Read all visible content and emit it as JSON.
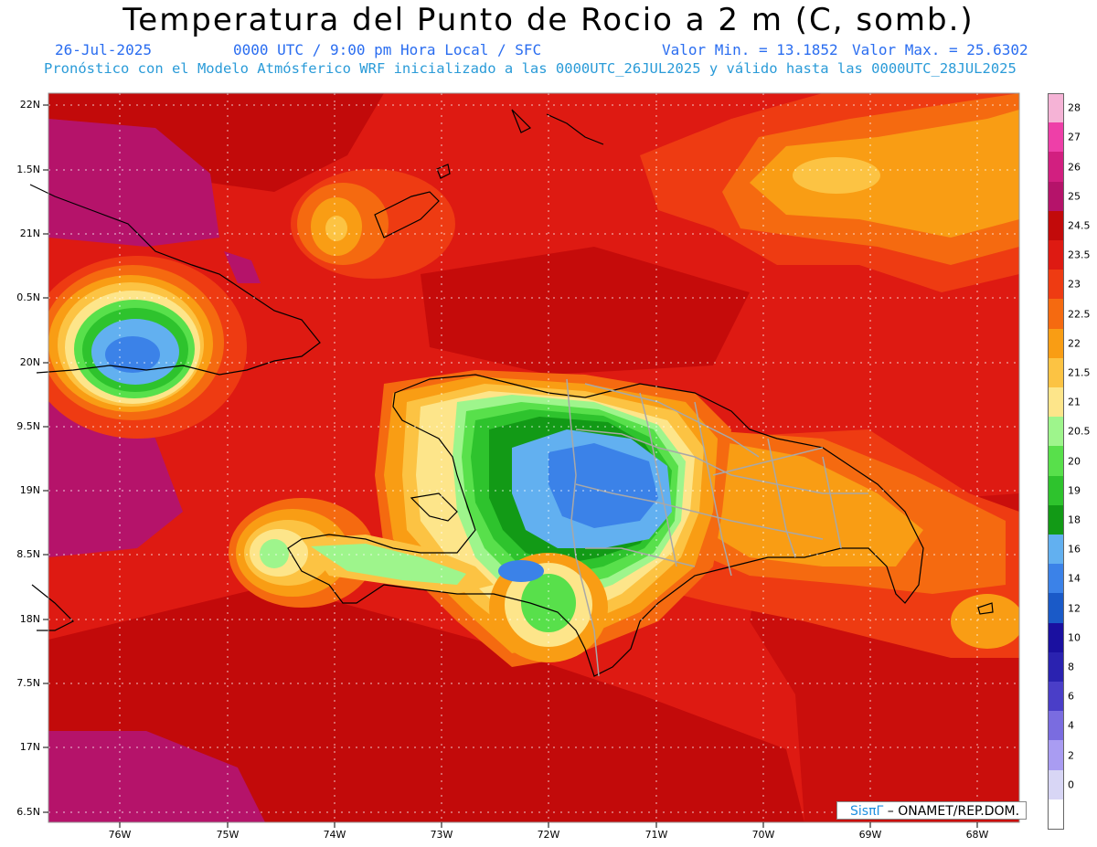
{
  "header": {
    "title": "Temperatura del Punto de Rocio a 2 m (C, somb.)",
    "date": "26-Jul-2025",
    "time_info": "0000 UTC / 9:00 pm Hora Local / SFC",
    "min_label": "Valor Min. = 13.1852",
    "max_label": "Valor Max. = 25.6302",
    "model_info": "Pronóstico con el Modelo Atmósferico WRF inicializado a las 0000UTC_26JUL2025 y válido hasta las  0000UTC_28JUL2025"
  },
  "map": {
    "lat_labels": [
      "22N",
      "1.5N",
      "21N",
      "0.5N",
      "20N",
      "9.5N",
      "19N",
      "8.5N",
      "18N",
      "7.5N",
      "17N",
      "6.5N"
    ],
    "lon_labels": [
      "76W",
      "75W",
      "74W",
      "73W",
      "72W",
      "71W",
      "70W",
      "69W",
      "68W"
    ]
  },
  "legend": {
    "levels": [
      {
        "label": "28",
        "color": "#f5b3d6"
      },
      {
        "label": "27",
        "color": "#ee3fa8"
      },
      {
        "label": "26",
        "color": "#d21f80"
      },
      {
        "label": "25",
        "color": "#b5136a"
      },
      {
        "label": "24.5",
        "color": "#c20a0a"
      },
      {
        "label": "23.5",
        "color": "#de1a12"
      },
      {
        "label": "23",
        "color": "#ee3b12"
      },
      {
        "label": "22.5",
        "color": "#f56a10"
      },
      {
        "label": "22",
        "color": "#f99d14"
      },
      {
        "label": "21.5",
        "color": "#fcc343"
      },
      {
        "label": "21",
        "color": "#fde58a"
      },
      {
        "label": "20.5",
        "color": "#9ef58c"
      },
      {
        "label": "20",
        "color": "#58e04b"
      },
      {
        "label": "19",
        "color": "#2ec32d"
      },
      {
        "label": "18",
        "color": "#129a16"
      },
      {
        "label": "16",
        "color": "#62b0f0"
      },
      {
        "label": "14",
        "color": "#3b82e8"
      },
      {
        "label": "12",
        "color": "#1a5ac8"
      },
      {
        "label": "10",
        "color": "#1a10a0"
      },
      {
        "label": "8",
        "color": "#2a22b0"
      },
      {
        "label": "6",
        "color": "#4a3ec8"
      },
      {
        "label": "4",
        "color": "#7a6ce0"
      },
      {
        "label": "2",
        "color": "#a99cf2"
      },
      {
        "label": "0",
        "color": "#d8d6f5"
      },
      {
        "label": "",
        "color": "#ffffff"
      }
    ]
  },
  "credit": {
    "brand": "SisπΓ",
    "org": " – ONAMET/REP.DOM."
  }
}
